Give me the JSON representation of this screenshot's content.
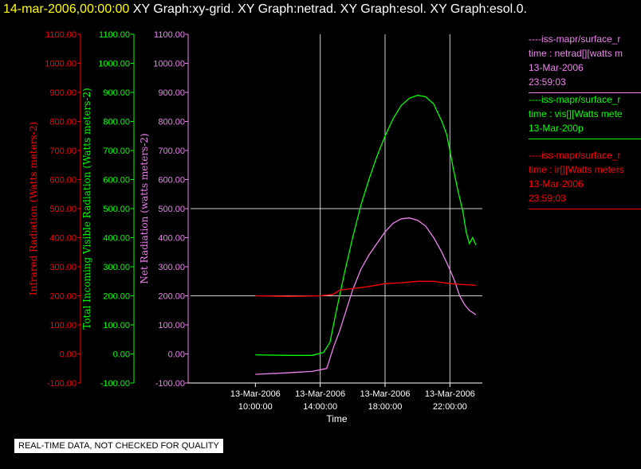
{
  "header": {
    "date": "14-mar-2006,00:00:00",
    "graphs": "XY Graph:xy-grid.  XY Graph:netrad.  XY Graph:esol.  XY Graph:esol.0."
  },
  "legend": [
    {
      "color": "#ee82ee",
      "lines": [
        "----iss-mapr/surface_r",
        "time : netrad[][watts m",
        "13-Mar-2006",
        "23:59:03"
      ]
    },
    {
      "color": "#00ff00",
      "lines": [
        "----iss-mapr/surface_r",
        "time : vis[][Watts mete",
        "13-Mar-200p"
      ]
    },
    {
      "color": "#ff0000",
      "lines": [
        "----iss-mapr/surface_r",
        "time : ir[][Watts meters",
        "13-Mar-2006",
        "23:59:03"
      ]
    }
  ],
  "note": "REAL-TIME DATA, NOT CHECKED FOR QUALITY",
  "colors": {
    "ir": "#ff0000",
    "vis": "#00ff00",
    "net": "#ee82ee",
    "grid": "#ffffff",
    "axis": "#ffffff"
  },
  "chart_data": {
    "type": "line",
    "xlabel": "Time",
    "x_ticks": [
      {
        "date": "13-Mar-2006",
        "time": "10:00:00",
        "hour": 10
      },
      {
        "date": "13-Mar-2006",
        "time": "14:00:00",
        "hour": 14
      },
      {
        "date": "13-Mar-2006",
        "time": "18:00:00",
        "hour": 18
      },
      {
        "date": "13-Mar-2006",
        "time": "22:00:00",
        "hour": 22
      }
    ],
    "xlim_hours": [
      6.0,
      24.0
    ],
    "ylim": [
      -100,
      1100
    ],
    "y_ticks": [
      "-100.00",
      "0.00",
      "100.00",
      "200.00",
      "300.00",
      "400.00",
      "500.00",
      "600.00",
      "700.00",
      "800.00",
      "900.00",
      "1000.00",
      "1100.00"
    ],
    "axes": [
      {
        "key": "ir",
        "label": "Infrared Radiation (Watts meters-2)",
        "color": "#ff0000"
      },
      {
        "key": "vis",
        "label": "Total Incoming Visible Radiation (Watts meters-2)",
        "color": "#00ff00"
      },
      {
        "key": "net",
        "label": "Net Radiation (watts meters-2)",
        "color": "#ee82ee"
      }
    ],
    "grid": true,
    "series": [
      {
        "key": "vis",
        "color": "#00ff00",
        "x": [
          10.0,
          12.0,
          13.5,
          14.2,
          14.6,
          15.0,
          15.5,
          16.0,
          16.5,
          17.0,
          17.5,
          18.0,
          18.5,
          19.0,
          19.5,
          20.0,
          20.5,
          21.0,
          21.5,
          21.8,
          22.0,
          22.2,
          22.5,
          22.8,
          23.0,
          23.2,
          23.4,
          23.6
        ],
        "y": [
          -3,
          -5,
          -5,
          5,
          40,
          150,
          280,
          400,
          510,
          600,
          680,
          750,
          810,
          855,
          880,
          890,
          885,
          860,
          800,
          755,
          700,
          640,
          560,
          490,
          420,
          380,
          400,
          375
        ]
      },
      {
        "key": "net",
        "color": "#ee82ee",
        "x": [
          10.0,
          12.0,
          13.5,
          14.4,
          14.8,
          15.2,
          15.6,
          16.0,
          16.5,
          17.0,
          17.5,
          18.0,
          18.5,
          19.0,
          19.5,
          20.0,
          20.5,
          21.0,
          21.5,
          22.0,
          22.3,
          22.6,
          22.9,
          23.2,
          23.6
        ],
        "y": [
          -70,
          -65,
          -60,
          -50,
          20,
          80,
          150,
          220,
          290,
          340,
          380,
          420,
          450,
          465,
          468,
          460,
          440,
          400,
          350,
          290,
          250,
          200,
          170,
          150,
          135
        ]
      },
      {
        "key": "ir",
        "color": "#ff0000",
        "x": [
          10.0,
          12.0,
          14.0,
          14.8,
          15.2,
          16.0,
          17.0,
          18.0,
          19.0,
          20.0,
          21.0,
          22.0,
          23.0,
          23.6
        ],
        "y": [
          200,
          198,
          200,
          205,
          220,
          225,
          232,
          242,
          245,
          250,
          250,
          242,
          238,
          236
        ]
      }
    ]
  }
}
